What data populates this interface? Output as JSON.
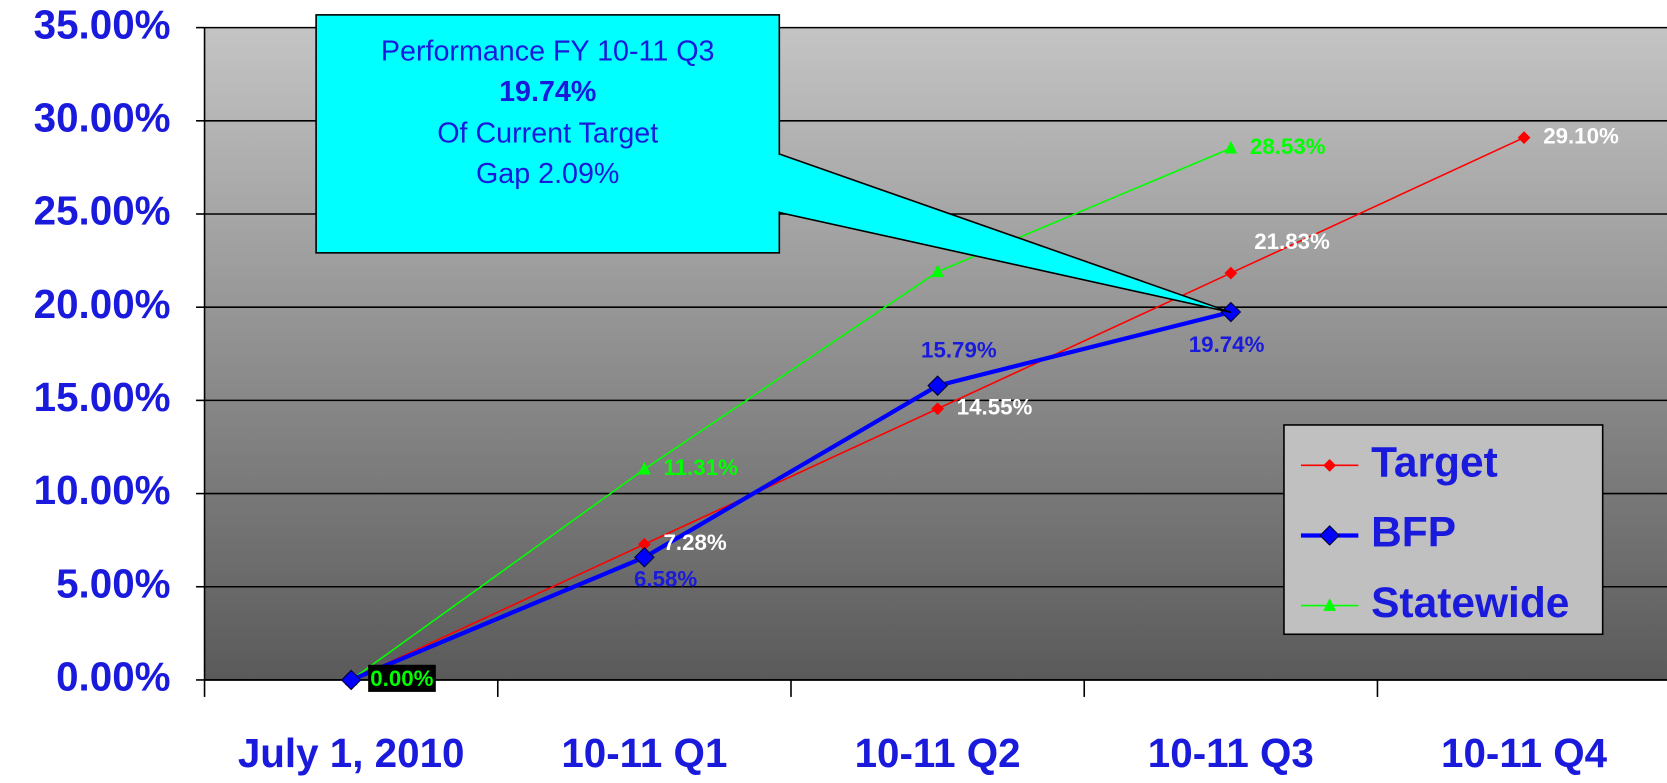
{
  "chart_data": {
    "type": "line",
    "categories": [
      "July 1, 2010",
      "10-11 Q1",
      "10-11 Q2",
      "10-11 Q3",
      "10-11 Q4"
    ],
    "series": [
      {
        "name": "Target",
        "color": "#ff0000",
        "values": [
          0,
          7.28,
          14.55,
          21.83,
          29.1
        ],
        "value_labels": [
          null,
          "7.28%",
          "14.55%",
          "21.83%",
          "29.10%"
        ],
        "label_color": "#ffffff"
      },
      {
        "name": "BFP",
        "color": "#0000ff",
        "values": [
          0,
          6.58,
          15.79,
          19.74,
          null
        ],
        "value_labels": [
          null,
          "6.58%",
          "15.79%",
          "19.74%",
          null
        ],
        "label_color": "#1a1adc"
      },
      {
        "name": "Statewide",
        "color": "#00ff00",
        "values": [
          0,
          11.31,
          21.9,
          28.53,
          null
        ],
        "value_labels": [
          "0.00%",
          "11.31%",
          null,
          "28.53%",
          null
        ],
        "label_color": "#00ff00"
      }
    ],
    "ylim": [
      0,
      35
    ],
    "yticks": [
      {
        "value": 0,
        "label": "0.00%"
      },
      {
        "value": 5,
        "label": "5.00%"
      },
      {
        "value": 10,
        "label": "10.00%"
      },
      {
        "value": 15,
        "label": "15.00%"
      },
      {
        "value": 20,
        "label": "20.00%"
      },
      {
        "value": 25,
        "label": "25.00%"
      },
      {
        "value": 30,
        "label": "30.00%"
      },
      {
        "value": 35,
        "label": "35.00%"
      }
    ],
    "grid": true,
    "legend": "lower right",
    "annotation": {
      "lines": [
        "Performance FY 10-11 Q3",
        "19.74%",
        "Of Current Target",
        "Gap 2.09%"
      ]
    }
  }
}
